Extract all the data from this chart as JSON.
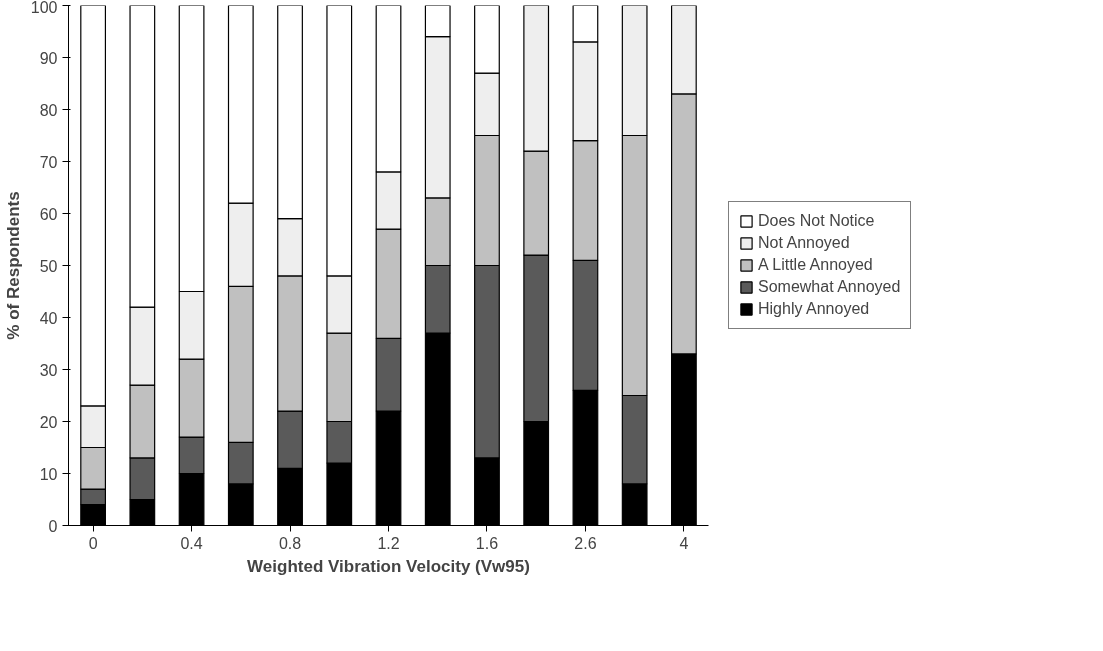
{
  "chart_data": {
    "type": "bar",
    "stacked": true,
    "xlabel": "Weighted Vibration Velocity (Vw95)",
    "ylabel": "% of Respondents",
    "categories": [
      "0",
      null,
      "0.4",
      null,
      "0.8",
      null,
      "1.2",
      null,
      "1.6",
      null,
      "2.6",
      null,
      "4"
    ],
    "series": [
      {
        "name": "Highly Annoyed",
        "color": "#000000",
        "values": [
          4,
          5,
          10,
          8,
          11,
          12,
          22,
          37,
          13,
          20,
          26,
          8,
          33
        ]
      },
      {
        "name": "Somewhat Annoyed",
        "color": "#5a5a5a",
        "values": [
          3,
          8,
          7,
          8,
          11,
          8,
          14,
          13,
          37,
          32,
          25,
          17,
          0
        ]
      },
      {
        "name": "A Little Annoyed",
        "color": "#c0c0c0",
        "values": [
          8,
          14,
          15,
          30,
          26,
          17,
          21,
          13,
          25,
          20,
          23,
          50,
          50
        ]
      },
      {
        "name": "Not Annoyed",
        "color": "#eeeeee",
        "values": [
          8,
          15,
          13,
          16,
          11,
          11,
          11,
          31,
          12,
          28,
          19,
          25,
          17
        ]
      },
      {
        "name": "Does Not Notice",
        "color": "#ffffff",
        "values": [
          77,
          58,
          55,
          38,
          41,
          52,
          32,
          6,
          13,
          0,
          7,
          0,
          0
        ]
      }
    ],
    "ylim": [
      0,
      100
    ],
    "yticks": [
      0,
      10,
      20,
      30,
      40,
      50,
      60,
      70,
      80,
      90,
      100
    ],
    "grid": false,
    "legend": "right"
  }
}
